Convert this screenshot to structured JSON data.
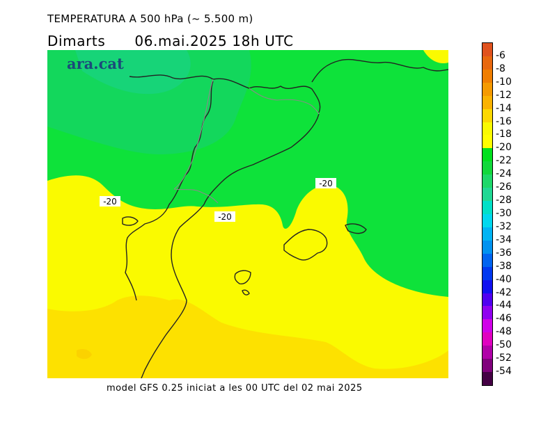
{
  "header": {
    "title": "TEMPERATURA A 500 hPa (~ 5.500 m)",
    "day": "Dimarts",
    "datetime": "06.mai.2025 18h UTC"
  },
  "map": {
    "logo": "ara.cat",
    "contour_labels": [
      "-20",
      "-20",
      "-20"
    ]
  },
  "footer": {
    "model_info": "model GFS 0.25 iniciat a les 00 UTC del 02 mai 2025"
  },
  "legend": {
    "labels": [
      "-6",
      "-8",
      "-10",
      "-12",
      "-14",
      "-16",
      "-18",
      "-20",
      "-22",
      "-24",
      "-26",
      "-28",
      "-30",
      "-32",
      "-34",
      "-36",
      "-38",
      "-40",
      "-42",
      "-44",
      "-46",
      "-48",
      "-50",
      "-52",
      "-54"
    ],
    "colors": [
      "#e0521e",
      "#e8680f",
      "#f07e00",
      "#f59a00",
      "#fab200",
      "#fcd800",
      "#fafa00",
      "#ffff00",
      "#00e01e",
      "#12d83c",
      "#1ed86a",
      "#20d894",
      "#00e0c8",
      "#00d8ee",
      "#00b4f4",
      "#0092f0",
      "#0064f0",
      "#0038f0",
      "#1010f0",
      "#5000f0",
      "#9000f0",
      "#d000e8",
      "#e000c0",
      "#b000a8",
      "#80007c",
      "#440044"
    ]
  }
}
